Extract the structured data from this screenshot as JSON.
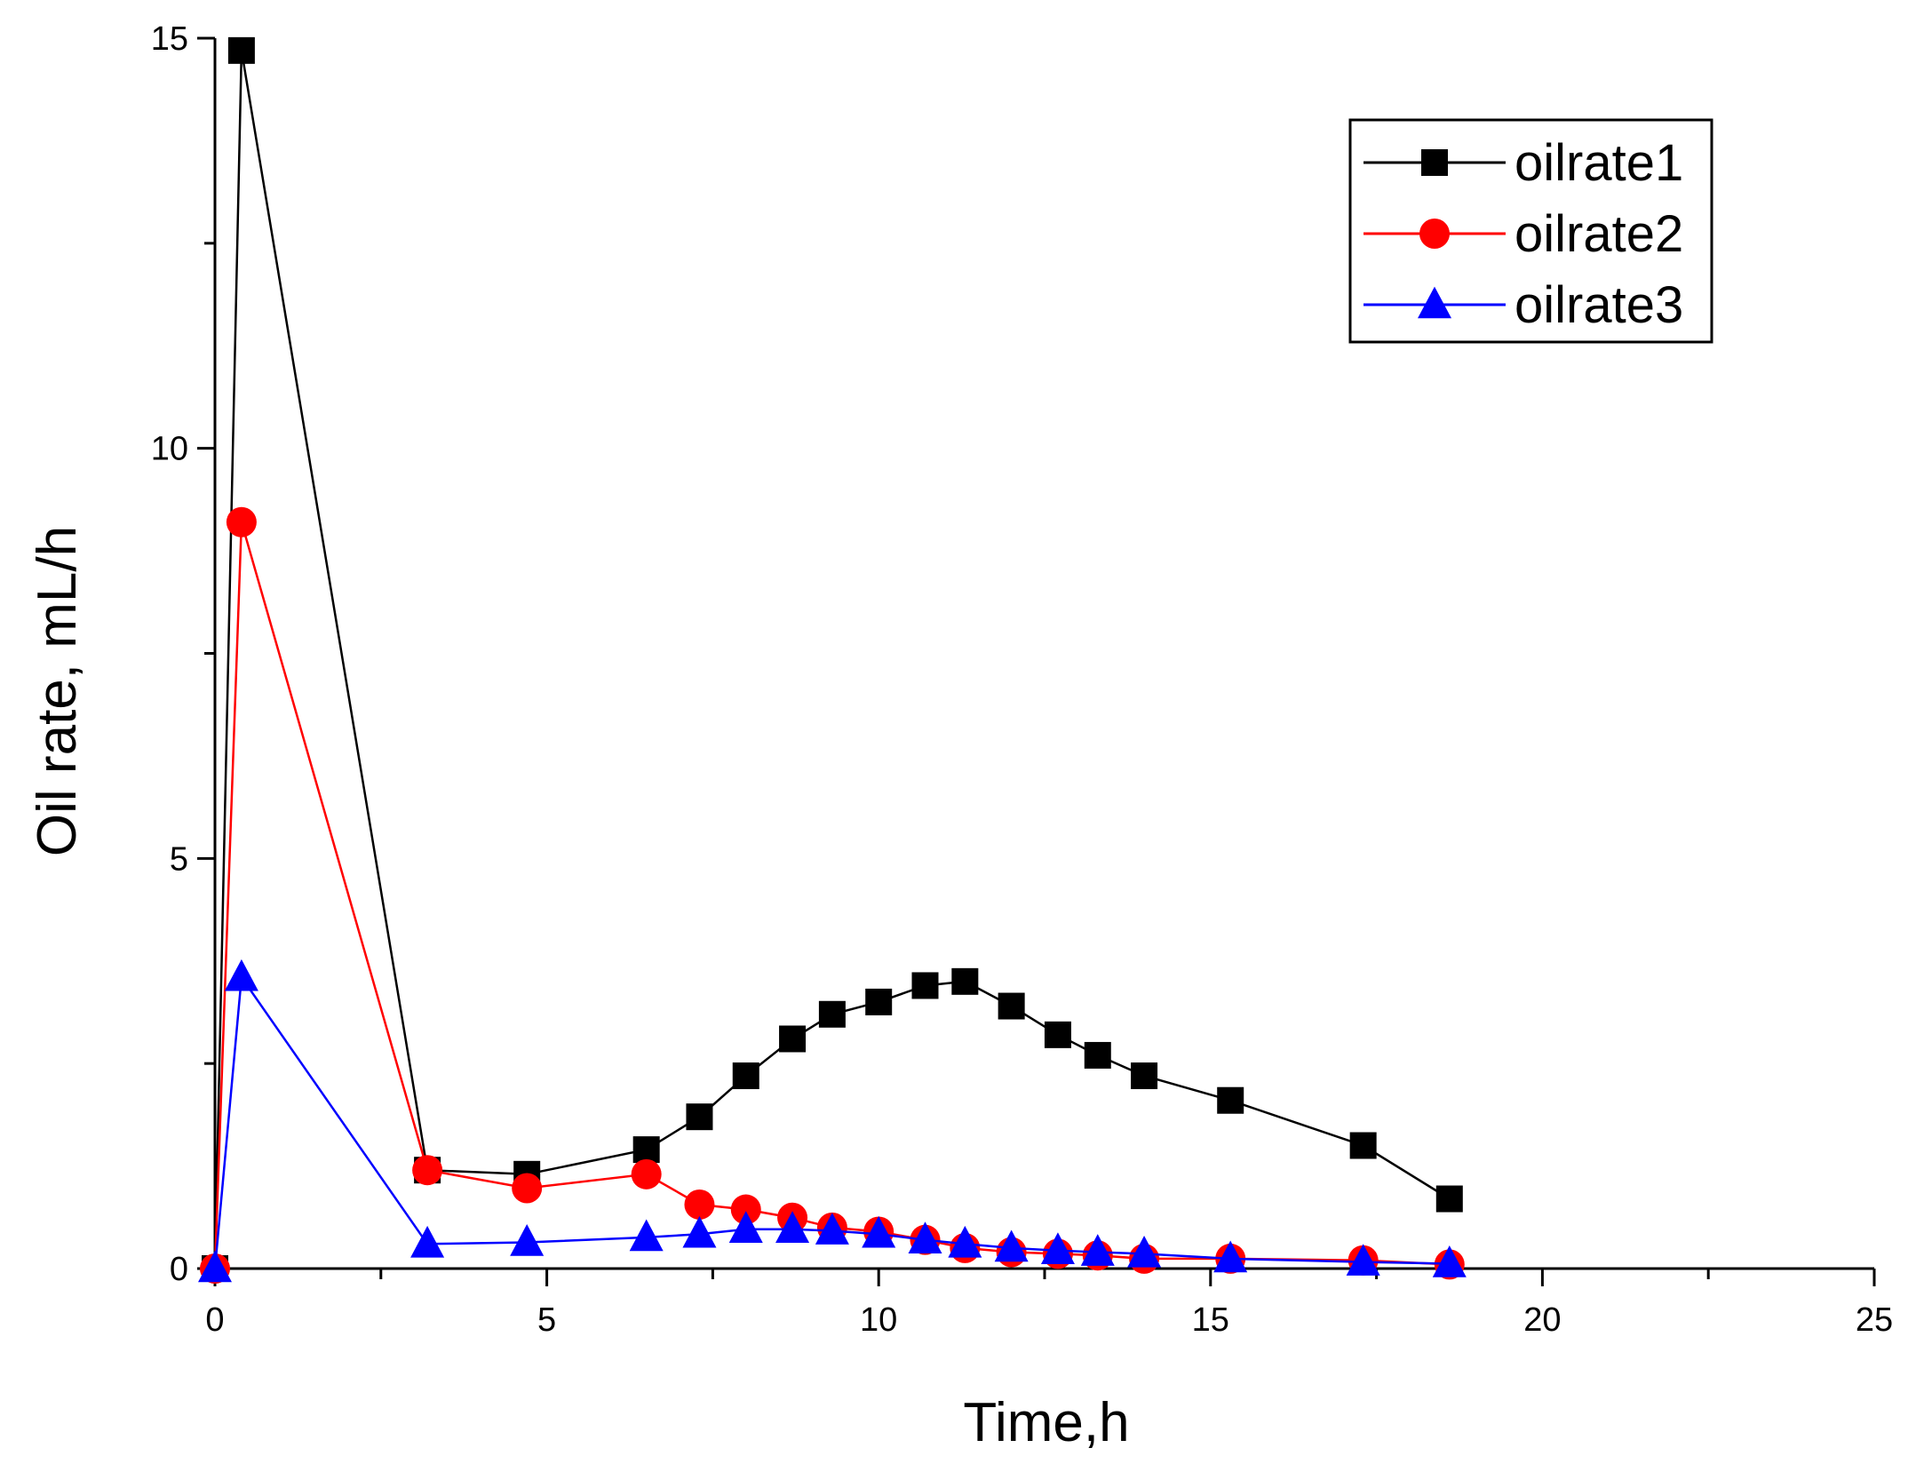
{
  "chart_data": {
    "type": "line",
    "title": "",
    "xlabel": "Time,h",
    "ylabel": "Oil rate, mL/h",
    "xlim": [
      0,
      25
    ],
    "ylim": [
      0,
      15
    ],
    "x_ticks": [
      0,
      5,
      10,
      15,
      20,
      25
    ],
    "y_ticks": [
      0,
      5,
      10,
      15
    ],
    "grid": false,
    "legend_position": "top-right",
    "series": [
      {
        "name": "oilrate1",
        "color": "#000000",
        "marker": "square",
        "x": [
          0,
          0.4,
          3.2,
          4.7,
          6.5,
          7.3,
          8.0,
          8.7,
          9.3,
          10.0,
          10.7,
          11.3,
          12.0,
          12.7,
          13.3,
          14.0,
          15.3,
          17.3,
          18.6
        ],
        "y": [
          0,
          14.85,
          1.2,
          1.15,
          1.45,
          1.85,
          2.35,
          2.8,
          3.1,
          3.25,
          3.45,
          3.5,
          3.2,
          2.85,
          2.6,
          2.35,
          2.05,
          1.5,
          0.85
        ]
      },
      {
        "name": "oilrate2",
        "color": "#ff0000",
        "marker": "circle",
        "x": [
          0,
          0.4,
          3.2,
          4.7,
          6.5,
          7.3,
          8.0,
          8.7,
          9.3,
          10.0,
          10.7,
          11.3,
          12.0,
          12.7,
          13.3,
          14.0,
          15.3,
          17.3,
          18.6
        ],
        "y": [
          0,
          9.1,
          1.2,
          0.98,
          1.15,
          0.78,
          0.72,
          0.62,
          0.5,
          0.45,
          0.35,
          0.25,
          0.2,
          0.18,
          0.16,
          0.12,
          0.12,
          0.1,
          0.05
        ]
      },
      {
        "name": "oilrate3",
        "color": "#0000ff",
        "marker": "triangle",
        "x": [
          0,
          0.4,
          3.2,
          4.7,
          6.5,
          7.3,
          8.0,
          8.7,
          9.3,
          10.0,
          10.7,
          11.3,
          12.0,
          12.7,
          13.3,
          14.0,
          15.3,
          17.3,
          18.6
        ],
        "y": [
          0,
          3.55,
          0.3,
          0.32,
          0.38,
          0.42,
          0.48,
          0.48,
          0.46,
          0.42,
          0.35,
          0.3,
          0.25,
          0.22,
          0.2,
          0.18,
          0.12,
          0.08,
          0.06
        ]
      }
    ]
  }
}
